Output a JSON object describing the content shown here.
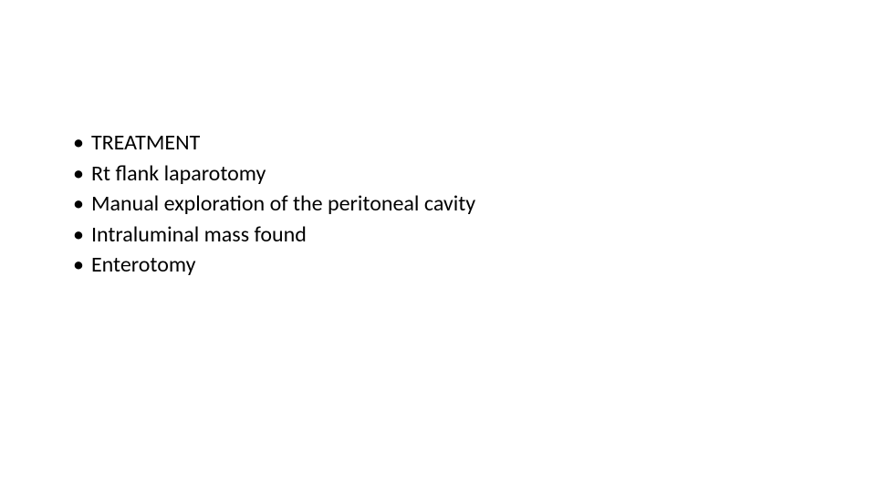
{
  "slide": {
    "background_color": "#ffffff",
    "text_color": "#000000",
    "font_family": "Calibri, Arial, sans-serif",
    "font_size": 24,
    "bullet_char": "•",
    "items": [
      "TREATMENT",
      "Rt flank laparotomy",
      "Manual exploration of the peritoneal cavity",
      "Intraluminal mass found",
      "Enterotomy"
    ]
  }
}
